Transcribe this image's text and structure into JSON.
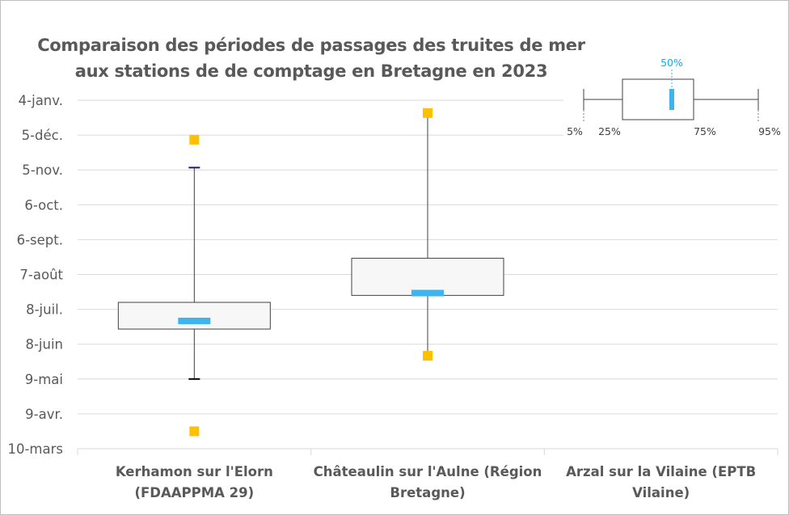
{
  "chart_data": {
    "type": "boxplot",
    "title_lines": [
      "Comparaison des périodes de passages des truites de mer",
      "aux stations de de comptage en Bretagne en 2023"
    ],
    "y_tick_labels": [
      "4-janv.",
      "5-déc.",
      "5-nov.",
      "6-oct.",
      "6-sept.",
      "7-août",
      "8-juil.",
      "8-juin",
      "9-mai",
      "9-avr.",
      "10-mars"
    ],
    "y_tick_values": [
      369,
      339,
      309,
      279,
      249,
      219,
      189,
      159,
      129,
      99,
      69
    ],
    "y_range": [
      69,
      369
    ],
    "categories": [
      {
        "label_lines": [
          "Kerhamon sur l'Elorn",
          "(FDAAPPMA 29)"
        ],
        "p5": 129,
        "p25": 172,
        "median": 179,
        "p75": 195,
        "p95": 311,
        "min": 84,
        "max": 335
      },
      {
        "label_lines": [
          "Châteaulin sur l'Aulne (Région",
          "Bretagne)"
        ],
        "p5": 152,
        "p25": 201,
        "median": 203,
        "p75": 233,
        "p95": 358,
        "min": 149,
        "max": 358
      },
      {
        "label_lines": [
          "Arzal sur la Vilaine (EPTB",
          "Vilaine)"
        ]
      }
    ],
    "legend": {
      "median_label": "50%",
      "p5_label": "5%",
      "p25_label": "25%",
      "p75_label": "75%",
      "p95_label": "95%"
    },
    "colors": {
      "median": "#3cb4f0",
      "extreme": "#ffc000",
      "box_fill": "#f7f7f7",
      "box_stroke": "#404040",
      "grid": "#d9d9d9",
      "text": "#595959"
    }
  }
}
